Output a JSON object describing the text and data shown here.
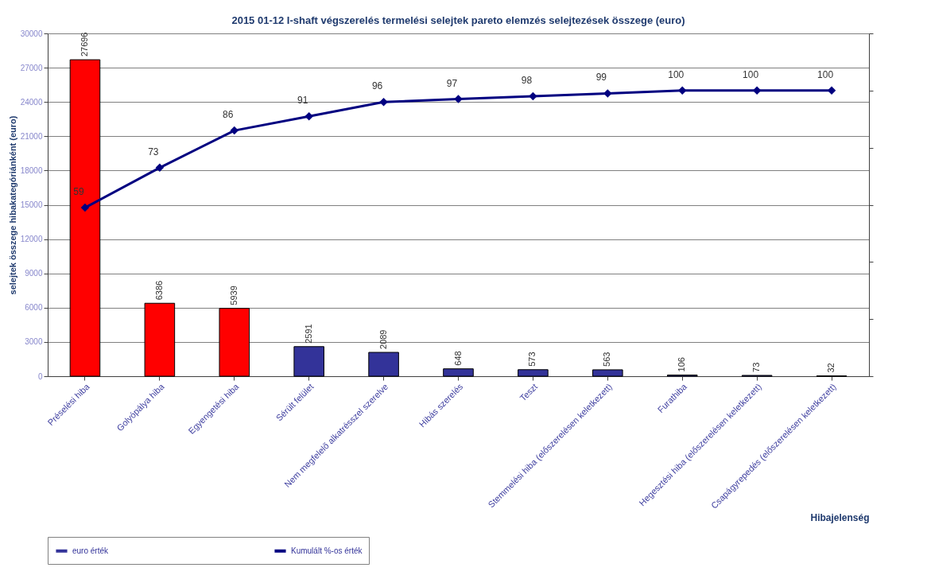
{
  "chart_data": {
    "type": "bar",
    "title": "2015 01-12 I-shaft végszerelés  termelési selejtek pareto elemzés selejtezések összege (euro)",
    "xlabel": "Hibajelenség",
    "ylabel": "selejtek összege hibakategóriánként (euro)",
    "categories": [
      "Préselési hiba",
      "Golyópálya hiba",
      "Egyengetési hiba",
      "Sérült felület",
      "Nem megfelelő alkatrésszel szerelve",
      "Hibás szerelés",
      "Teszt",
      "Stemmelési hiba (előszerelésen keletkezett)",
      "Furathiba",
      "Hegesztési hiba (előszerelésen keletkezett)",
      "Csapágyrepedés (előszerelésen keletkezett)"
    ],
    "series": [
      {
        "name": "euro érték",
        "color": "#333399",
        "colors": [
          "#ff0000",
          "#ff0000",
          "#ff0000",
          "#333399",
          "#333399",
          "#333399",
          "#333399",
          "#333399",
          "#333399",
          "#333399",
          "#333399"
        ],
        "values": [
          27696,
          6386,
          5939,
          2591,
          2089,
          648,
          573,
          563,
          106,
          73,
          32
        ]
      },
      {
        "name": "Kumulált %-os érték",
        "type": "line",
        "axis": "y2",
        "color": "#000080",
        "marker": "diamond",
        "values": [
          59,
          73,
          86,
          91,
          96,
          97,
          98,
          99,
          100,
          100,
          100
        ]
      }
    ],
    "ylim": [
      0,
      30000
    ],
    "yticks": [
      0,
      3000,
      6000,
      9000,
      12000,
      15000,
      18000,
      21000,
      24000,
      27000,
      30000
    ],
    "y2lim": [
      0,
      120
    ],
    "y2ticks": [
      {
        "value": 0,
        "label": null
      },
      {
        "value": 20,
        "label": null
      },
      {
        "value": 40,
        "label": null
      },
      {
        "value": 60,
        "label": null
      },
      {
        "value": 80,
        "label": null
      },
      {
        "value": 100,
        "label": null
      },
      {
        "value": 120,
        "label": null
      }
    ],
    "data_labels": true,
    "grid": "y",
    "legend": "bottom"
  }
}
